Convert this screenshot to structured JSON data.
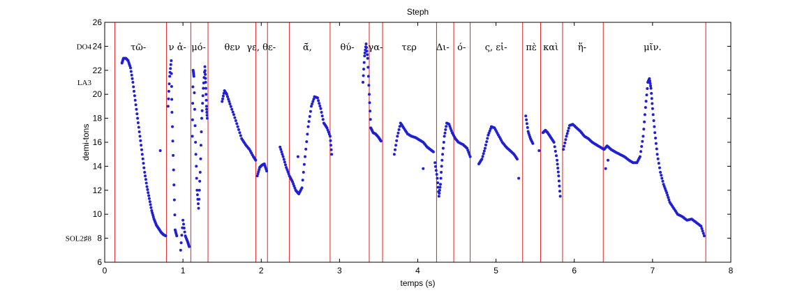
{
  "chart_data": {
    "type": "scatter",
    "title": "Steph",
    "xlabel": "temps (s)",
    "ylabel": "demi-tons",
    "xlim": [
      0,
      8
    ],
    "ylim": [
      6,
      26
    ],
    "xticks": [
      0,
      1,
      2,
      3,
      4,
      5,
      6,
      7,
      8
    ],
    "yticks": [
      6,
      8,
      10,
      12,
      14,
      16,
      18,
      20,
      22,
      24,
      26
    ],
    "note_labels": [
      {
        "y": 24,
        "text": "DO4"
      },
      {
        "y": 21,
        "text": "LA3"
      },
      {
        "y": 8,
        "text": "SOL2♯8"
      }
    ],
    "boundaries": [
      0.13,
      0.79,
      1.1,
      1.32,
      1.93,
      2.08,
      2.36,
      2.88,
      3.38,
      3.55,
      4.24,
      4.46,
      4.67,
      5.34,
      5.57,
      5.85,
      6.37,
      7.68
    ],
    "syllables": [
      {
        "x": 0.43,
        "text": "τῶ-"
      },
      {
        "x": 0.93,
        "text": "ν ἀ-"
      },
      {
        "x": 1.2,
        "text": "μό-"
      },
      {
        "x": 1.63,
        "text": "θεν"
      },
      {
        "x": 2.0,
        "text": "γε, θε-"
      },
      {
        "x": 2.59,
        "text": "ᾱ́,"
      },
      {
        "x": 3.1,
        "text": "θύ-"
      },
      {
        "x": 3.46,
        "text": "γα-"
      },
      {
        "x": 3.89,
        "text": "τερ"
      },
      {
        "x": 4.32,
        "text": "Δι-"
      },
      {
        "x": 4.56,
        "text": "ό-"
      },
      {
        "x": 5.0,
        "text": "ς, εἰ-"
      },
      {
        "x": 5.45,
        "text": "πὲ"
      },
      {
        "x": 5.7,
        "text": "καὶ"
      },
      {
        "x": 6.1,
        "text": "ἥ-"
      },
      {
        "x": 7.0,
        "text": "μῖν."
      }
    ],
    "series": [
      {
        "color": "#1f1fd6",
        "segments": [
          [
            [
              0.22,
              22.6
            ],
            [
              0.24,
              23.0
            ],
            [
              0.27,
              23.0
            ],
            [
              0.3,
              22.8
            ],
            [
              0.33,
              22.2
            ],
            [
              0.36,
              21.0
            ],
            [
              0.39,
              19.5
            ],
            [
              0.42,
              18.0
            ],
            [
              0.45,
              16.5
            ],
            [
              0.48,
              15.0
            ],
            [
              0.51,
              13.5
            ],
            [
              0.54,
              12.3
            ],
            [
              0.57,
              11.3
            ],
            [
              0.6,
              10.3
            ],
            [
              0.63,
              9.6
            ],
            [
              0.66,
              9.1
            ],
            [
              0.69,
              8.8
            ],
            [
              0.72,
              8.5
            ],
            [
              0.75,
              8.3
            ],
            [
              0.78,
              8.2
            ]
          ],
          [
            [
              0.71,
              15.3
            ]
          ],
          [
            [
              0.81,
              19.0
            ],
            [
              0.83,
              21.5
            ],
            [
              0.85,
              22.8
            ],
            [
              0.86,
              18.5
            ],
            [
              0.88,
              13.7
            ],
            [
              0.9,
              8.7
            ],
            [
              0.92,
              8.2
            ]
          ],
          [
            [
              0.97,
              7.0
            ],
            [
              1.0,
              9.5
            ],
            [
              1.03,
              8.2
            ],
            [
              1.06,
              7.7
            ],
            [
              1.08,
              7.3
            ]
          ],
          [
            [
              1.12,
              16.5
            ],
            [
              1.13,
              22.0
            ],
            [
              1.14,
              21.5
            ],
            [
              1.16,
              16.0
            ],
            [
              1.18,
              12.0
            ],
            [
              1.2,
              10.5
            ],
            [
              1.22,
              13.5
            ],
            [
              1.24,
              18.0
            ],
            [
              1.26,
              20.5
            ],
            [
              1.28,
              22.3
            ],
            [
              1.29,
              21.0
            ],
            [
              1.3,
              19.0
            ],
            [
              1.31,
              18.0
            ]
          ],
          [
            [
              1.5,
              19.4
            ],
            [
              1.53,
              20.3
            ],
            [
              1.56,
              20.0
            ],
            [
              1.6,
              19.2
            ],
            [
              1.65,
              18.3
            ],
            [
              1.7,
              17.3
            ],
            [
              1.75,
              16.3
            ],
            [
              1.8,
              15.8
            ],
            [
              1.85,
              15.4
            ],
            [
              1.9,
              14.8
            ],
            [
              1.93,
              14.5
            ]
          ],
          [
            [
              1.95,
              13.2
            ],
            [
              1.98,
              13.9
            ],
            [
              2.01,
              14.1
            ],
            [
              2.04,
              14.2
            ],
            [
              2.07,
              13.6
            ]
          ],
          [
            [
              2.24,
              15.6
            ],
            [
              2.28,
              14.8
            ],
            [
              2.32,
              13.9
            ],
            [
              2.36,
              13.2
            ],
            [
              2.4,
              12.7
            ],
            [
              2.44,
              12.0
            ],
            [
              2.48,
              11.7
            ],
            [
              2.52,
              12.2
            ],
            [
              2.56,
              14.8
            ],
            [
              2.6,
              17.3
            ],
            [
              2.64,
              19.0
            ],
            [
              2.68,
              19.8
            ],
            [
              2.72,
              19.7
            ],
            [
              2.76,
              18.8
            ],
            [
              2.8,
              17.6
            ],
            [
              2.84,
              17.2
            ],
            [
              2.88,
              16.5
            ],
            [
              2.9,
              15.0
            ]
          ],
          [
            [
              2.47,
              14.8
            ]
          ],
          [
            [
              3.3,
              21.0
            ],
            [
              3.32,
              23.2
            ],
            [
              3.34,
              24.2
            ],
            [
              3.36,
              23.0
            ],
            [
              3.38,
              20.0
            ],
            [
              3.4,
              17.2
            ],
            [
              3.43,
              16.8
            ],
            [
              3.46,
              16.7
            ],
            [
              3.5,
              16.4
            ],
            [
              3.53,
              16.1
            ]
          ],
          [
            [
              3.7,
              15.0
            ],
            [
              3.74,
              16.5
            ],
            [
              3.78,
              17.6
            ],
            [
              3.82,
              17.2
            ],
            [
              3.87,
              16.7
            ],
            [
              3.92,
              16.5
            ],
            [
              3.97,
              16.4
            ],
            [
              4.02,
              16.2
            ],
            [
              4.07,
              16.0
            ],
            [
              4.12,
              15.6
            ],
            [
              4.16,
              15.4
            ],
            [
              4.2,
              15.2
            ]
          ],
          [
            [
              4.07,
              13.8
            ]
          ],
          [
            [
              4.22,
              14.3
            ],
            [
              4.25,
              13.0
            ],
            [
              4.27,
              11.5
            ],
            [
              4.29,
              12.5
            ],
            [
              4.31,
              14.5
            ],
            [
              4.34,
              16.5
            ],
            [
              4.37,
              17.6
            ],
            [
              4.4,
              17.5
            ],
            [
              4.44,
              16.8
            ],
            [
              4.48,
              16.3
            ],
            [
              4.52,
              16.0
            ],
            [
              4.58,
              15.8
            ],
            [
              4.63,
              15.5
            ],
            [
              4.67,
              14.8
            ]
          ],
          [
            [
              4.78,
              14.2
            ],
            [
              4.82,
              14.6
            ],
            [
              4.86,
              15.5
            ],
            [
              4.9,
              16.6
            ],
            [
              4.94,
              17.3
            ],
            [
              4.98,
              17.2
            ],
            [
              5.03,
              16.6
            ],
            [
              5.08,
              16.0
            ],
            [
              5.13,
              15.6
            ],
            [
              5.18,
              15.3
            ],
            [
              5.23,
              15.0
            ],
            [
              5.27,
              14.6
            ]
          ],
          [
            [
              5.29,
              13.0
            ]
          ],
          [
            [
              5.38,
              18.2
            ],
            [
              5.41,
              16.9
            ],
            [
              5.44,
              16.3
            ],
            [
              5.47,
              15.9
            ]
          ],
          [
            [
              5.55,
              15.3
            ]
          ],
          [
            [
              5.6,
              16.8
            ],
            [
              5.63,
              17.0
            ],
            [
              5.66,
              16.8
            ],
            [
              5.7,
              16.4
            ],
            [
              5.74,
              16.0
            ],
            [
              5.78,
              14.5
            ],
            [
              5.8,
              13.2
            ],
            [
              5.82,
              11.5
            ]
          ],
          [
            [
              5.86,
              15.4
            ],
            [
              5.9,
              16.5
            ],
            [
              5.94,
              17.4
            ],
            [
              5.98,
              17.5
            ],
            [
              6.03,
              17.2
            ],
            [
              6.08,
              16.9
            ],
            [
              6.13,
              16.5
            ],
            [
              6.18,
              16.3
            ],
            [
              6.23,
              16.0
            ],
            [
              6.28,
              15.8
            ],
            [
              6.33,
              15.6
            ],
            [
              6.38,
              15.4
            ],
            [
              6.42,
              15.7
            ],
            [
              6.47,
              15.4
            ],
            [
              6.52,
              15.2
            ],
            [
              6.58,
              15.0
            ],
            [
              6.64,
              14.8
            ],
            [
              6.7,
              14.5
            ],
            [
              6.75,
              14.3
            ],
            [
              6.8,
              14.3
            ],
            [
              6.84,
              14.8
            ],
            [
              6.88,
              16.5
            ],
            [
              6.91,
              18.9
            ],
            [
              6.94,
              21.0
            ],
            [
              6.96,
              21.3
            ],
            [
              6.98,
              20.5
            ],
            [
              7.0,
              18.8
            ],
            [
              7.03,
              16.8
            ],
            [
              7.06,
              15.0
            ],
            [
              7.1,
              13.5
            ],
            [
              7.14,
              12.5
            ],
            [
              7.18,
              11.8
            ],
            [
              7.22,
              11.0
            ],
            [
              7.27,
              10.5
            ],
            [
              7.32,
              10.0
            ],
            [
              7.38,
              9.8
            ],
            [
              7.44,
              9.5
            ],
            [
              7.5,
              9.6
            ],
            [
              7.56,
              9.3
            ],
            [
              7.62,
              9.0
            ],
            [
              7.66,
              8.2
            ]
          ],
          [
            [
              6.4,
              13.8
            ]
          ],
          [
            [
              6.43,
              14.5
            ]
          ]
        ]
      }
    ]
  }
}
